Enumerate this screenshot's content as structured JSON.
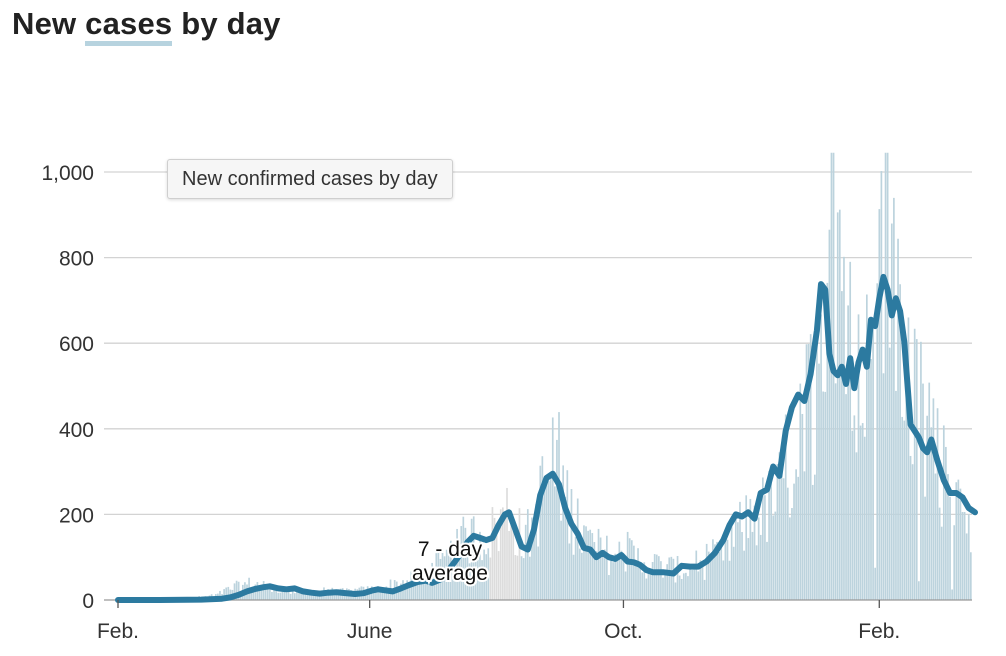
{
  "header": {
    "title_pre": "New ",
    "title_hl": "cases",
    "title_post": " by day"
  },
  "legend": {
    "label": "New confirmed cases by day"
  },
  "annotation": {
    "line1": "7 - day",
    "line2": "average"
  },
  "colors": {
    "bars": "#bcd3dd",
    "bars_gray": "#dcdcdc",
    "average_line": "#2c7aa0",
    "grid": "#d3d3d3",
    "title_highlight": "#b7d3df"
  },
  "chart_data": {
    "type": "bar",
    "title": "New cases by day",
    "xlabel": "",
    "ylabel": "",
    "ylim": [
      0,
      1050
    ],
    "yticks": [
      0,
      200,
      400,
      600,
      800,
      1000
    ],
    "ytick_labels": [
      "0",
      "200",
      "400",
      "600",
      "800",
      "1,000"
    ],
    "x_tick_labels": [
      {
        "day": 0,
        "label": "Feb."
      },
      {
        "day": 121,
        "label": "June"
      },
      {
        "day": 243,
        "label": "Oct."
      },
      {
        "day": 366,
        "label": "Feb."
      }
    ],
    "x_range_days": [
      0,
      378
    ],
    "gray_bar_range_days": [
      179,
      193
    ],
    "series": [
      {
        "name": "New confirmed cases by day",
        "kind": "daily_bars",
        "anchors_day_value": [
          [
            0,
            0
          ],
          [
            30,
            2
          ],
          [
            46,
            10
          ],
          [
            56,
            30
          ],
          [
            65,
            40
          ],
          [
            70,
            30
          ],
          [
            80,
            25
          ],
          [
            88,
            18
          ],
          [
            95,
            20
          ],
          [
            105,
            18
          ],
          [
            115,
            22
          ],
          [
            125,
            25
          ],
          [
            131,
            35
          ],
          [
            140,
            45
          ],
          [
            148,
            55
          ],
          [
            155,
            80
          ],
          [
            162,
            110
          ],
          [
            168,
            140
          ],
          [
            172,
            150
          ],
          [
            178,
            150
          ],
          [
            183,
            170
          ],
          [
            187,
            210
          ],
          [
            190,
            190
          ],
          [
            195,
            130
          ],
          [
            200,
            180
          ],
          [
            205,
            270
          ],
          [
            209,
            300
          ],
          [
            213,
            280
          ],
          [
            218,
            200
          ],
          [
            223,
            150
          ],
          [
            230,
            120
          ],
          [
            238,
            100
          ],
          [
            245,
            110
          ],
          [
            252,
            90
          ],
          [
            260,
            80
          ],
          [
            270,
            70
          ],
          [
            280,
            80
          ],
          [
            290,
            100
          ],
          [
            298,
            150
          ],
          [
            305,
            200
          ],
          [
            312,
            210
          ],
          [
            318,
            250
          ],
          [
            324,
            320
          ],
          [
            330,
            400
          ],
          [
            334,
            480
          ],
          [
            338,
            560
          ],
          [
            341,
            750
          ],
          [
            344,
            900
          ],
          [
            347,
            720
          ],
          [
            350,
            560
          ],
          [
            353,
            600
          ],
          [
            356,
            550
          ],
          [
            359,
            480
          ],
          [
            362,
            620
          ],
          [
            365,
            820
          ],
          [
            368,
            900
          ],
          [
            371,
            780
          ],
          [
            374,
            700
          ],
          [
            378,
            640
          ],
          [
            384,
            450
          ],
          [
            390,
            380
          ],
          [
            395,
            300
          ],
          [
            400,
            250
          ],
          [
            405,
            230
          ],
          [
            410,
            200
          ],
          [
            414,
            180
          ]
        ]
      },
      {
        "name": "7 - day average",
        "kind": "line",
        "points_day_value": [
          [
            0,
            0
          ],
          [
            20,
            0
          ],
          [
            40,
            1
          ],
          [
            50,
            3
          ],
          [
            54,
            6
          ],
          [
            58,
            12
          ],
          [
            62,
            20
          ],
          [
            66,
            26
          ],
          [
            70,
            30
          ],
          [
            73,
            32
          ],
          [
            77,
            27
          ],
          [
            81,
            25
          ],
          [
            85,
            27
          ],
          [
            89,
            20
          ],
          [
            93,
            17
          ],
          [
            97,
            15
          ],
          [
            101,
            17
          ],
          [
            105,
            18
          ],
          [
            110,
            16
          ],
          [
            114,
            14
          ],
          [
            118,
            16
          ],
          [
            122,
            22
          ],
          [
            125,
            25
          ],
          [
            128,
            23
          ],
          [
            132,
            20
          ],
          [
            136,
            27
          ],
          [
            140,
            35
          ],
          [
            144,
            42
          ],
          [
            148,
            45
          ],
          [
            151,
            40
          ],
          [
            153,
            44
          ],
          [
            156,
            50
          ],
          [
            159,
            70
          ],
          [
            162,
            90
          ],
          [
            165,
            110
          ],
          [
            168,
            135
          ],
          [
            171,
            150
          ],
          [
            174,
            145
          ],
          [
            177,
            140
          ],
          [
            180,
            145
          ],
          [
            183,
            175
          ],
          [
            186,
            200
          ],
          [
            188,
            205
          ],
          [
            191,
            165
          ],
          [
            194,
            125
          ],
          [
            197,
            118
          ],
          [
            200,
            165
          ],
          [
            203,
            245
          ],
          [
            206,
            285
          ],
          [
            209,
            295
          ],
          [
            212,
            270
          ],
          [
            215,
            215
          ],
          [
            218,
            178
          ],
          [
            221,
            155
          ],
          [
            224,
            122
          ],
          [
            227,
            118
          ],
          [
            230,
            100
          ],
          [
            233,
            110
          ],
          [
            236,
            100
          ],
          [
            239,
            96
          ],
          [
            242,
            105
          ],
          [
            245,
            90
          ],
          [
            248,
            88
          ],
          [
            251,
            82
          ],
          [
            254,
            70
          ],
          [
            257,
            65
          ],
          [
            262,
            65
          ],
          [
            267,
            62
          ],
          [
            271,
            80
          ],
          [
            275,
            78
          ],
          [
            279,
            78
          ],
          [
            283,
            90
          ],
          [
            287,
            110
          ],
          [
            291,
            140
          ],
          [
            294,
            175
          ],
          [
            297,
            200
          ],
          [
            300,
            195
          ],
          [
            303,
            205
          ],
          [
            306,
            190
          ],
          [
            309,
            250
          ],
          [
            312,
            258
          ],
          [
            315,
            312
          ],
          [
            318,
            290
          ],
          [
            321,
            395
          ],
          [
            324,
            450
          ],
          [
            327,
            480
          ],
          [
            330,
            465
          ],
          [
            333,
            528
          ],
          [
            336,
            630
          ],
          [
            338,
            738
          ],
          [
            340,
            725
          ],
          [
            342,
            575
          ],
          [
            344,
            535
          ],
          [
            346,
            525
          ],
          [
            348,
            545
          ],
          [
            350,
            505
          ],
          [
            352,
            565
          ],
          [
            354,
            495
          ],
          [
            356,
            555
          ],
          [
            358,
            585
          ],
          [
            360,
            545
          ],
          [
            362,
            655
          ],
          [
            364,
            640
          ],
          [
            366,
            705
          ],
          [
            368,
            755
          ],
          [
            370,
            725
          ],
          [
            372,
            665
          ],
          [
            374,
            705
          ],
          [
            376,
            675
          ],
          [
            378,
            605
          ],
          [
            381,
            410
          ],
          [
            385,
            380
          ],
          [
            387,
            355
          ],
          [
            389,
            345
          ],
          [
            391,
            375
          ],
          [
            394,
            325
          ],
          [
            397,
            280
          ],
          [
            400,
            250
          ],
          [
            403,
            250
          ],
          [
            406,
            240
          ],
          [
            409,
            215
          ],
          [
            412,
            205
          ]
        ]
      }
    ]
  }
}
